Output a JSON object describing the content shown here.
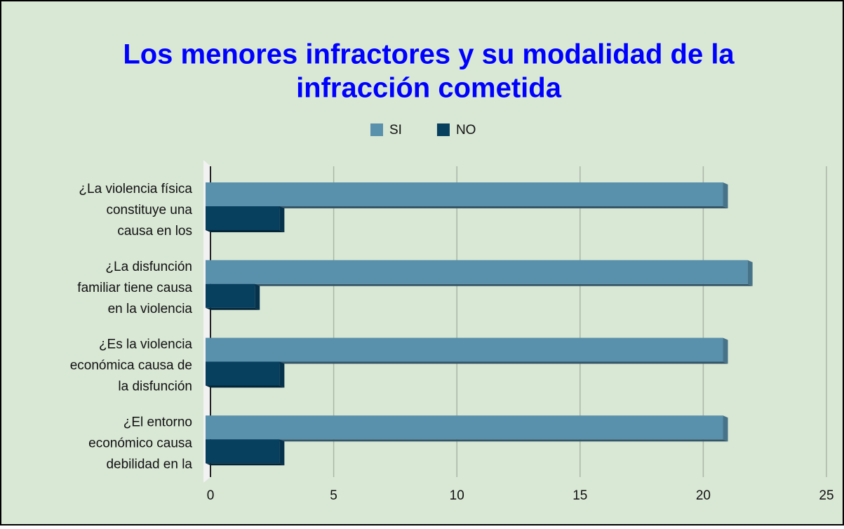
{
  "chart_data": {
    "type": "bar",
    "orientation": "horizontal",
    "title": [
      "Los menores infractores y su modalidad de la",
      "infracción cometida"
    ],
    "categories": [
      [
        "¿La violencia física",
        "constituye una",
        "causa en los"
      ],
      [
        "¿La disfunción",
        "familiar tiene causa",
        "en la violencia"
      ],
      [
        "¿Es la violencia",
        "económica causa de",
        "la disfunción"
      ],
      [
        "¿El entorno",
        "económico causa",
        "debilidad en la"
      ]
    ],
    "series": [
      {
        "name": "SI",
        "color": "#5990ab",
        "values": [
          21,
          22,
          21,
          21
        ]
      },
      {
        "name": "NO",
        "color": "#073f5e",
        "values": [
          3,
          2,
          3,
          3
        ]
      }
    ],
    "xlim": [
      0,
      25
    ],
    "xticks": [
      0,
      5,
      10,
      15,
      20,
      25
    ],
    "grid": true,
    "legend": "top"
  }
}
